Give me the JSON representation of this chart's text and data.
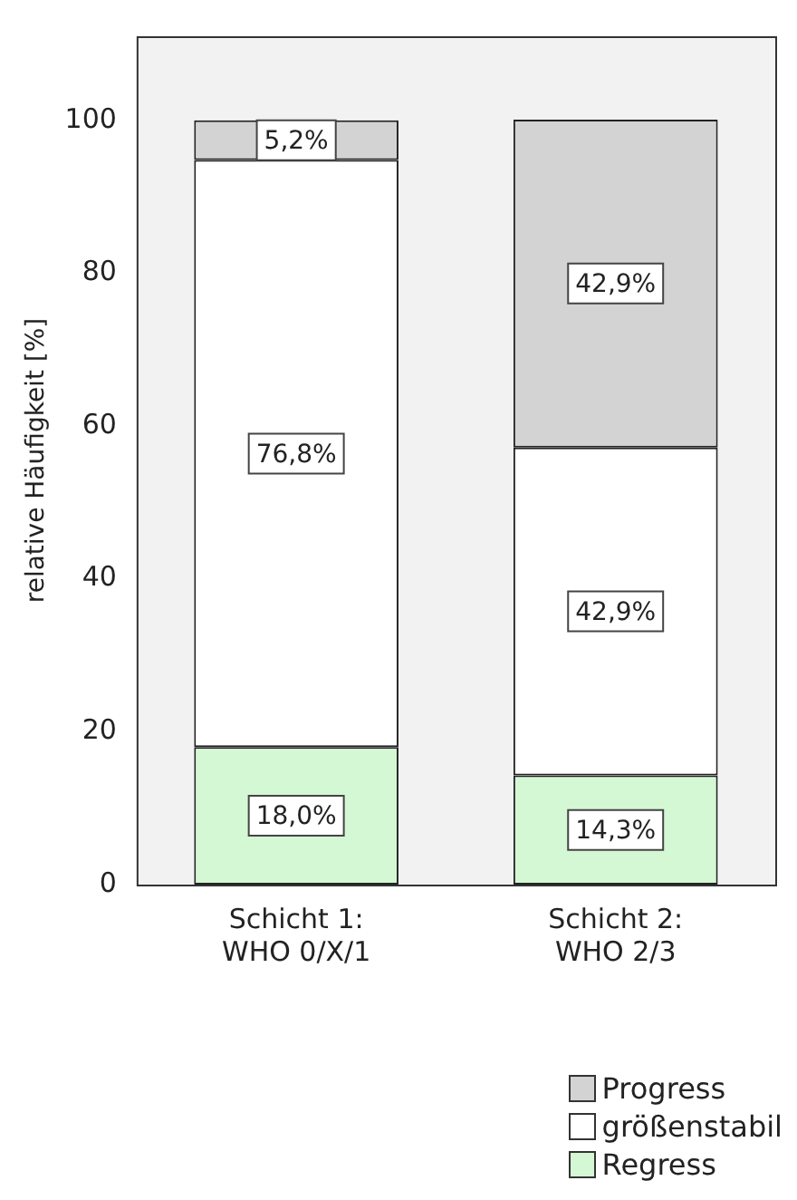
{
  "chart_data": {
    "type": "bar",
    "stacked": true,
    "ylabel": "relative Häufigkeit [%]",
    "categories": [
      "Schicht 1: WHO 0/X/1",
      "Schicht 2: WHO 2/3"
    ],
    "series": [
      {
        "name": "Regress",
        "color": "#d4f7d4",
        "values": [
          18.0,
          14.3
        ],
        "value_labels": [
          "18,0%",
          "14,3%"
        ]
      },
      {
        "name": "größenstabil",
        "color": "#ffffff",
        "values": [
          76.8,
          42.9
        ],
        "value_labels": [
          "76,8%",
          "42,9%"
        ]
      },
      {
        "name": "Progress",
        "color": "#d3d3d3",
        "values": [
          5.2,
          42.9
        ],
        "value_labels": [
          "5,2%",
          "42,9%"
        ]
      }
    ],
    "ylim": [
      0,
      111
    ],
    "yticks": [
      0,
      20,
      40,
      60,
      80,
      100
    ],
    "grid": false,
    "legend": "bottom right"
  }
}
